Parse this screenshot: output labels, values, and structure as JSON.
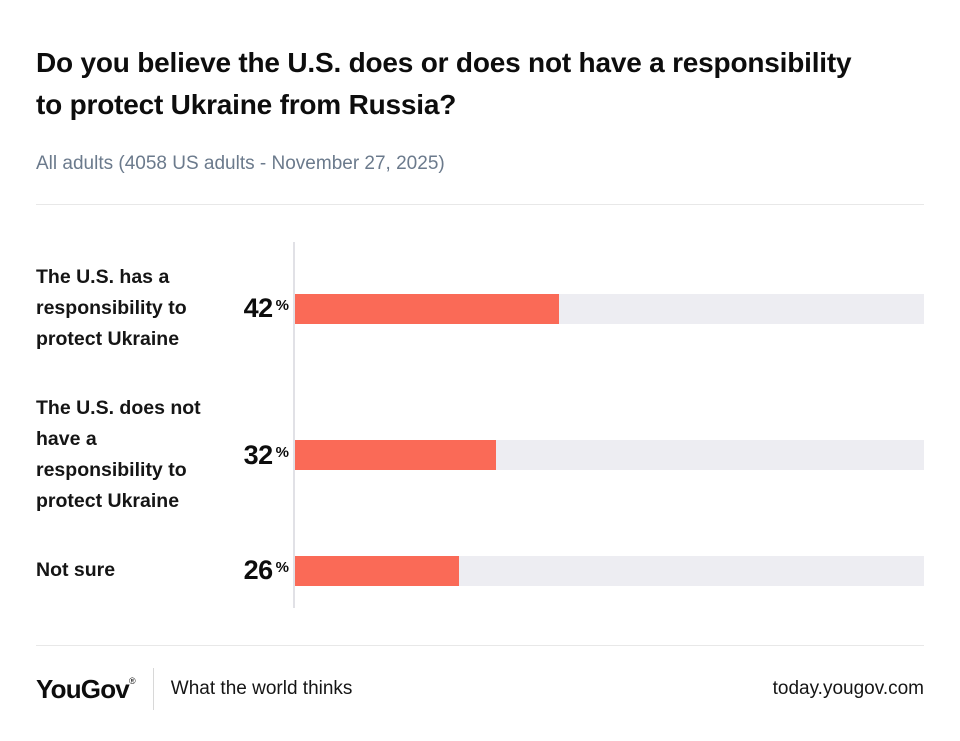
{
  "header": {
    "title_lines": [
      "Do you believe the U.S. does or does not have a responsibility",
      "to protect Ukraine from Russia?"
    ],
    "subtitle": "All adults (4058 US adults - November 27, 2025)"
  },
  "chart_data": {
    "type": "bar",
    "orientation": "horizontal",
    "title": "Do you believe the U.S. does or does not have a responsibility to protect Ukraine from Russia?",
    "subtitle": "All adults (4058 US adults - November 27, 2025)",
    "categories": [
      "The U.S. has a responsibility to protect Ukraine",
      "The U.S. does not have a responsibility to protect Ukraine",
      "Not sure"
    ],
    "values": [
      42,
      32,
      26
    ],
    "unit": "%",
    "xlim": [
      0,
      100
    ],
    "grid": false,
    "legend": false,
    "bar_color": "#fa6a57",
    "track_color": "#ededf2"
  },
  "footer": {
    "logo": "YouGov",
    "logo_mark": "®",
    "tagline": "What the world thinks",
    "url": "today.yougov.com"
  },
  "colors": {
    "accent": "#fa6a57",
    "track": "#ededf2",
    "subtitle_text": "#6b7a8c",
    "divider": "#e8e8e8"
  }
}
